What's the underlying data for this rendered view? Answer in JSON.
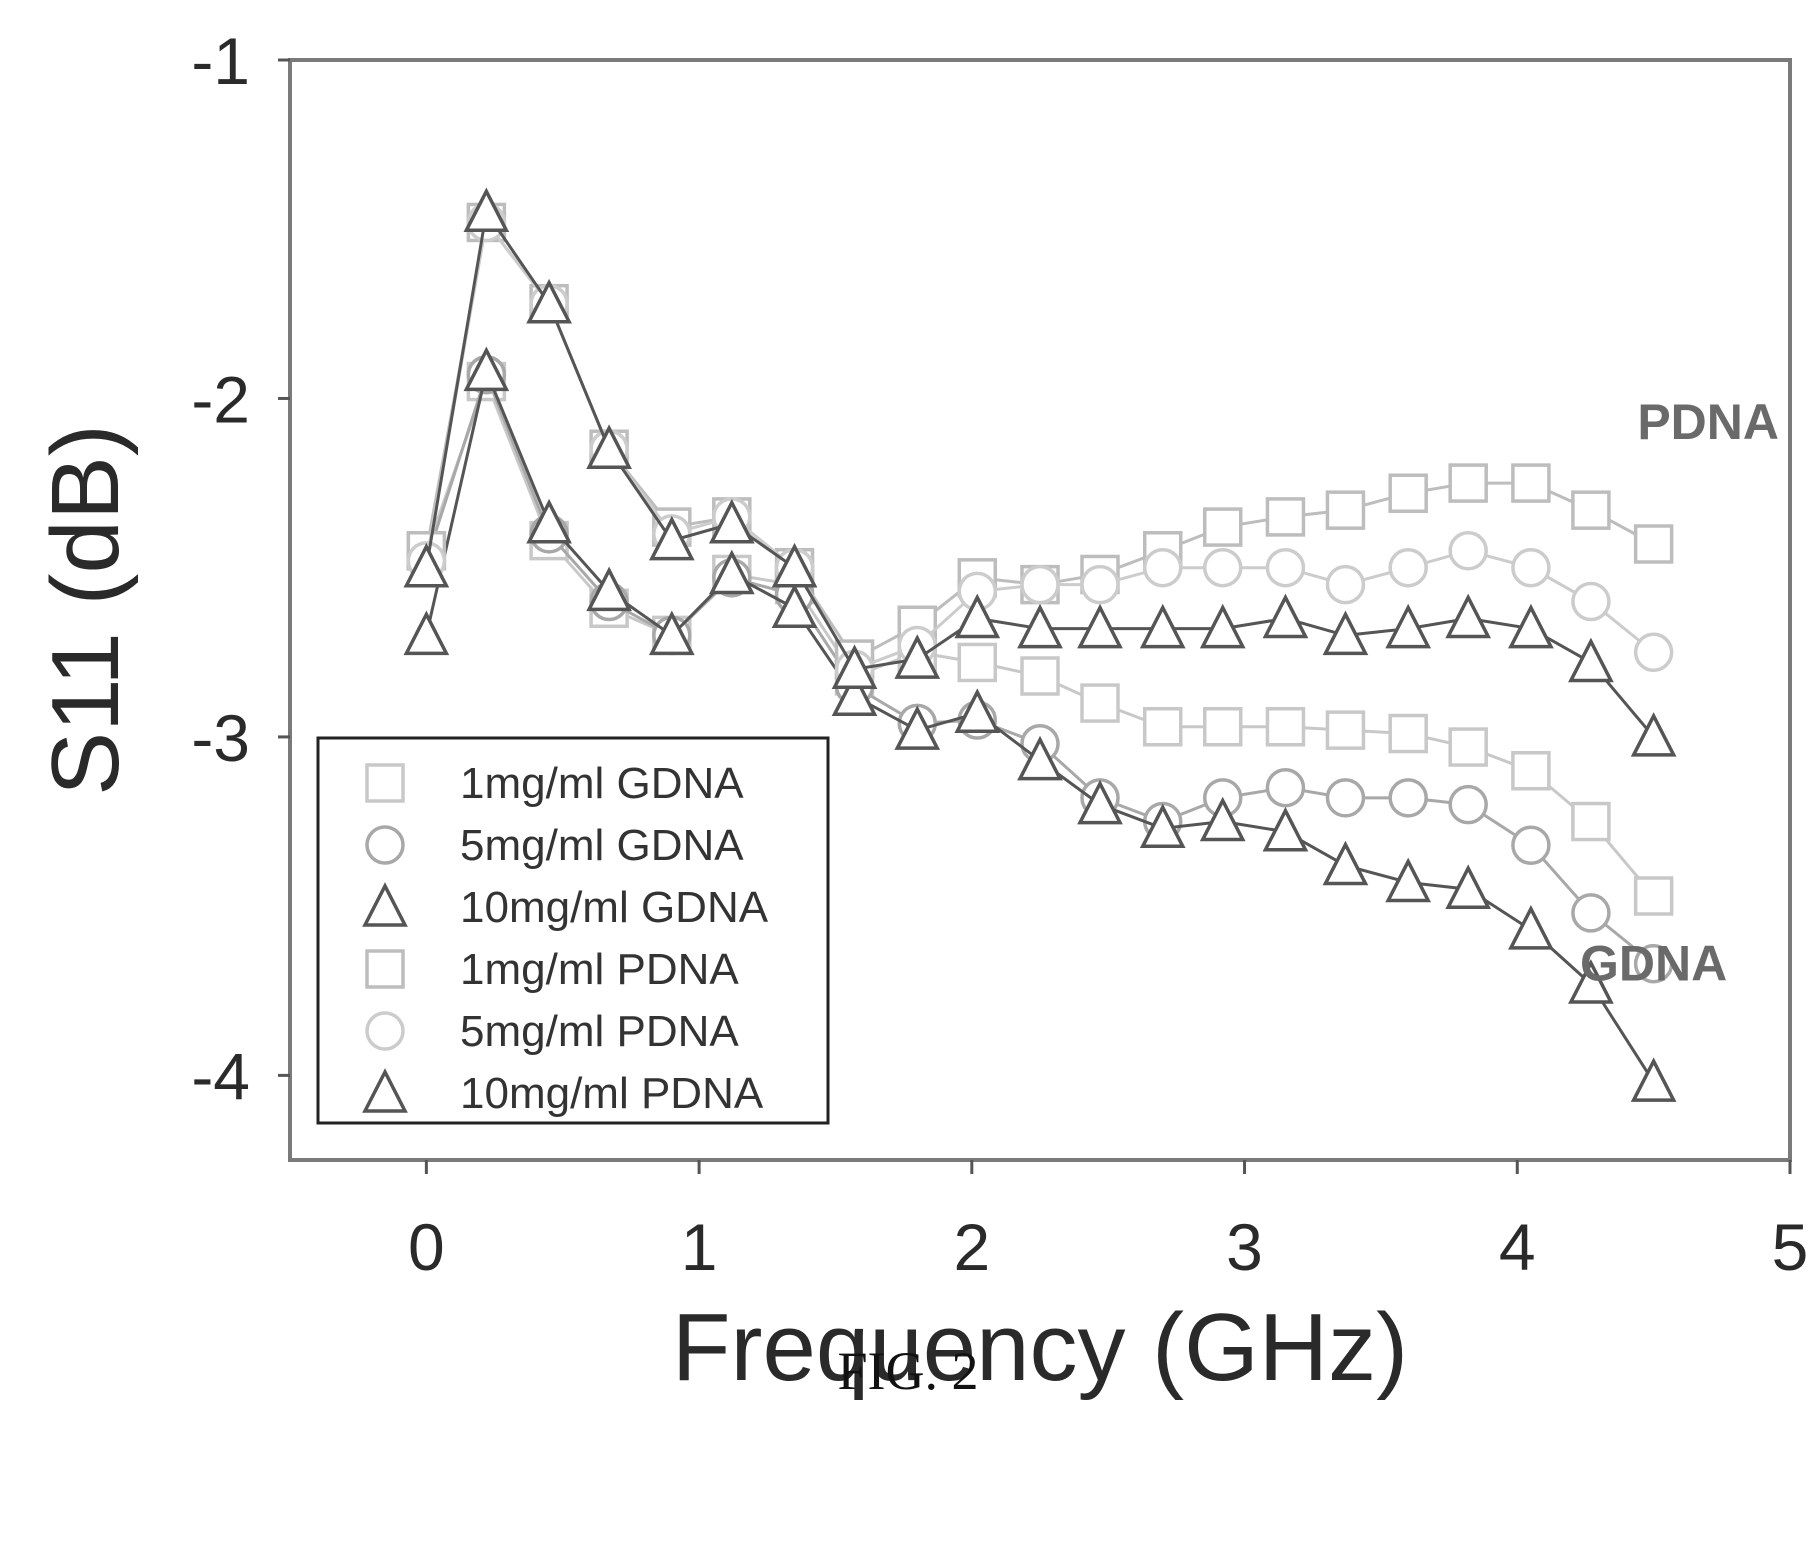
{
  "caption": "FIG. 2",
  "chart_data": {
    "type": "line",
    "xlabel": "Frequency (GHz)",
    "ylabel": "S11 (dB)",
    "xlim": [
      -0.5,
      5
    ],
    "ylim": [
      -4.25,
      -1
    ],
    "xticks": [
      0,
      1,
      2,
      3,
      4,
      5
    ],
    "yticks": [
      -1,
      -2,
      -3,
      -4
    ],
    "grid": false,
    "legend_position": "bottom-left",
    "annotations": [
      {
        "text": "PDNA",
        "x": 4.7,
        "y": -2.12
      },
      {
        "text": "GDNA",
        "x": 4.5,
        "y": -3.72
      }
    ],
    "x": [
      0,
      0.22,
      0.45,
      0.67,
      0.9,
      1.12,
      1.35,
      1.57,
      1.8,
      2.02,
      2.25,
      2.47,
      2.7,
      2.92,
      3.15,
      3.37,
      3.6,
      3.82,
      4.05,
      4.27,
      4.5
    ],
    "series": [
      {
        "name": "1mg/ml GDNA",
        "marker": "square",
        "color": "#c8c8c8",
        "values": [
          -2.45,
          -1.95,
          -2.42,
          -2.62,
          -2.7,
          -2.52,
          -2.55,
          -2.82,
          -2.75,
          -2.78,
          -2.82,
          -2.9,
          -2.97,
          -2.97,
          -2.97,
          -2.98,
          -2.99,
          -3.03,
          -3.1,
          -3.25,
          -3.47
        ]
      },
      {
        "name": "5mg/ml GDNA",
        "marker": "circle",
        "color": "#a8a8a8",
        "values": [
          -2.48,
          -1.93,
          -2.4,
          -2.6,
          -2.7,
          -2.53,
          -2.58,
          -2.85,
          -2.96,
          -2.95,
          -3.02,
          -3.18,
          -3.25,
          -3.18,
          -3.15,
          -3.18,
          -3.18,
          -3.2,
          -3.32,
          -3.52,
          -3.67
        ]
      },
      {
        "name": "10mg/ml GDNA",
        "marker": "triangle",
        "color": "#555555",
        "values": [
          -2.7,
          -1.92,
          -2.37,
          -2.57,
          -2.7,
          -2.52,
          -2.62,
          -2.88,
          -2.98,
          -2.93,
          -3.07,
          -3.2,
          -3.27,
          -3.25,
          -3.28,
          -3.38,
          -3.43,
          -3.45,
          -3.57,
          -3.73,
          -4.02
        ]
      },
      {
        "name": "1mg/ml PDNA",
        "marker": "square",
        "color": "#bdbdbd",
        "values": [
          -2.45,
          -1.48,
          -1.72,
          -2.15,
          -2.38,
          -2.35,
          -2.5,
          -2.77,
          -2.67,
          -2.53,
          -2.55,
          -2.52,
          -2.45,
          -2.38,
          -2.35,
          -2.33,
          -2.28,
          -2.25,
          -2.25,
          -2.33,
          -2.43
        ]
      },
      {
        "name": "5mg/ml PDNA",
        "marker": "circle",
        "color": "#cccccc",
        "values": [
          -2.48,
          -1.48,
          -1.72,
          -2.15,
          -2.4,
          -2.35,
          -2.5,
          -2.8,
          -2.73,
          -2.57,
          -2.55,
          -2.55,
          -2.5,
          -2.5,
          -2.5,
          -2.55,
          -2.5,
          -2.45,
          -2.5,
          -2.6,
          -2.75
        ]
      },
      {
        "name": "10mg/ml PDNA",
        "marker": "triangle",
        "color": "#555555",
        "values": [
          -2.5,
          -1.45,
          -1.72,
          -2.15,
          -2.42,
          -2.37,
          -2.5,
          -2.8,
          -2.77,
          -2.65,
          -2.68,
          -2.68,
          -2.68,
          -2.68,
          -2.65,
          -2.7,
          -2.68,
          -2.65,
          -2.68,
          -2.78,
          -3.0
        ]
      }
    ]
  }
}
